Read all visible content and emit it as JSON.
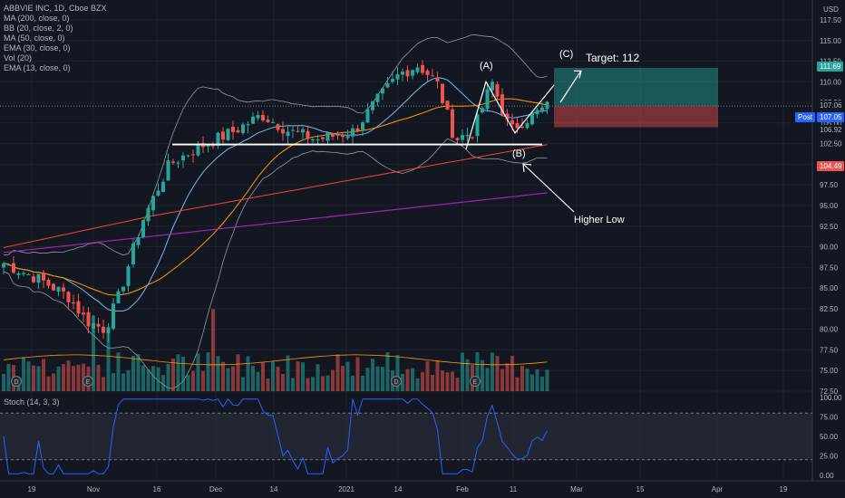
{
  "header": {
    "symbol_line": "ABBVIE INC, 1D, Cboe BZX",
    "indicators": [
      "MA (200, close, 0)",
      "BB (20, close, 2, 0)",
      "MA (50, close, 0)",
      "EMA (30, close, 0)",
      "Vol (20)",
      "EMA (13, close, 0)"
    ],
    "currency": "USD"
  },
  "stoch": {
    "label": "Stoch (14, 3, 3)",
    "ticks": [
      "100.00",
      "75.00",
      "50.00",
      "25.00",
      "0.00"
    ]
  },
  "price_axis": {
    "ticks": [
      "117.50",
      "115.00",
      "112.50",
      "110.00",
      "107.50",
      "105.00",
      "102.50",
      "100.00",
      "97.50",
      "95.00",
      "92.50",
      "90.00",
      "87.50",
      "85.00",
      "82.50",
      "80.00",
      "77.50",
      "75.00",
      "72.50"
    ]
  },
  "price_tags": {
    "target": "111.69",
    "last": "107.06",
    "post_label": "Post",
    "post": "107.05",
    "stop_ref": "106.92",
    "stop": "104.49"
  },
  "time_axis": {
    "labels": [
      "19",
      "Nov",
      "16",
      "Dec",
      "14",
      "2021",
      "14",
      "Feb",
      "11",
      "Mar",
      "15",
      "Apr",
      "19"
    ]
  },
  "annotations": {
    "target": "Target: 112",
    "wave_a": "(A)",
    "wave_b": "(B)",
    "wave_c": "(C)",
    "higher_low": "Higher Low"
  },
  "event_markers": [
    "D",
    "E",
    "D",
    "E"
  ],
  "colors": {
    "up": "#26a69a",
    "down": "#ef5350",
    "background": "#131722",
    "grid": "#1e222d",
    "axis_text": "#b2b5be",
    "bb": "#9598a1",
    "ma200": "#9c27b0",
    "ma50": "#f44336",
    "ema30": "#ff9800",
    "ema13": "#7cb7e6",
    "stoch": "#2962ff"
  }
}
